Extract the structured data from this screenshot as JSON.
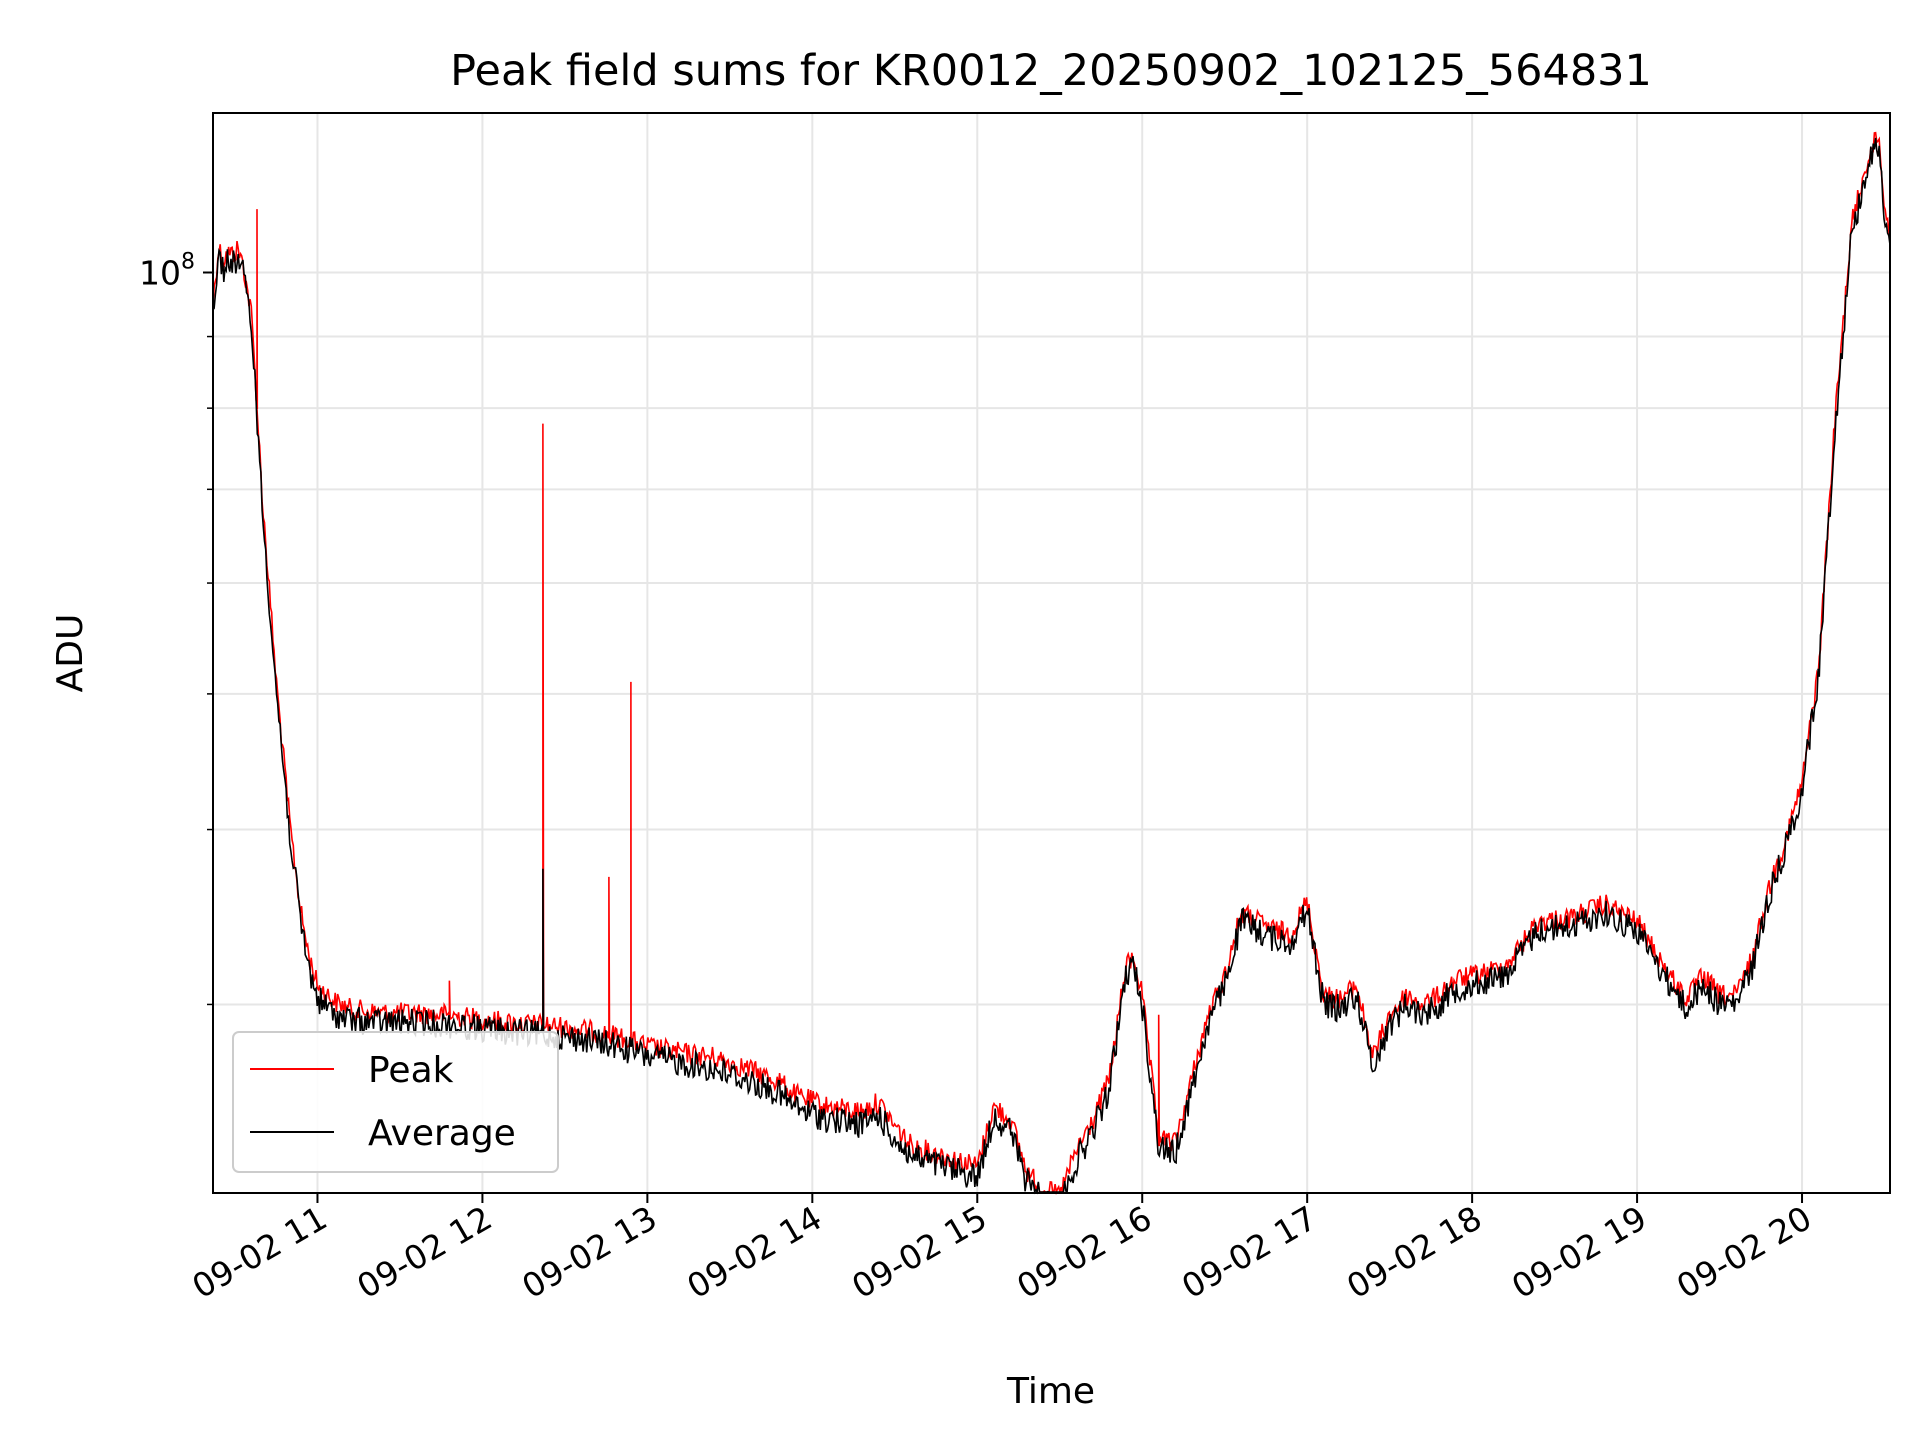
{
  "chart_data": {
    "type": "line",
    "title": "Peak field sums for KR0012_20250902_102125_564831",
    "xlabel": "Time",
    "ylabel": "ADU",
    "yscale": "log",
    "xlim": [
      "09-02 10:22",
      "09-02 20:32"
    ],
    "ylim": [
      22000000,
      130000000
    ],
    "grid": true,
    "legend": "lower-left",
    "x_ticks": [
      "09-02 11",
      "09-02 12",
      "09-02 13",
      "09-02 14",
      "09-02 15",
      "09-02 16",
      "09-02 17",
      "09-02 18",
      "09-02 19",
      "09-02 20"
    ],
    "y_major_ticks": [
      {
        "value": 100000000,
        "label": "10",
        "exponent": "8"
      }
    ],
    "y_minor_ticks": [
      30000000,
      40000000,
      50000000,
      60000000,
      70000000,
      80000000,
      90000000
    ],
    "series": [
      {
        "name": "Peak",
        "color": "#ff0000",
        "x": [
          "10:22",
          "10:24",
          "10:26",
          "10:27",
          "10:30",
          "10:31",
          "10:33",
          "10:36",
          "10:38",
          "10:40",
          "10:45",
          "10:50",
          "10:54",
          "10:57",
          "11:00",
          "11:06",
          "11:12",
          "11:24",
          "11:36",
          "11:48",
          "12:00",
          "12:12",
          "12:24",
          "12:36",
          "12:48",
          "13:00",
          "13:12",
          "13:24",
          "13:36",
          "13:48",
          "13:54",
          "14:06",
          "14:18",
          "14:24",
          "14:30",
          "14:36",
          "14:48",
          "15:00",
          "15:06",
          "15:12",
          "15:18",
          "15:24",
          "15:30",
          "15:36",
          "15:42",
          "15:48",
          "15:54",
          "15:57",
          "16:00",
          "16:06",
          "16:12",
          "16:18",
          "16:24",
          "16:30",
          "16:36",
          "16:42",
          "16:48",
          "16:54",
          "17:00",
          "17:06",
          "17:12",
          "17:18",
          "17:24",
          "17:30",
          "17:36",
          "17:42",
          "17:48",
          "17:54",
          "18:00",
          "18:12",
          "18:24",
          "18:36",
          "18:48",
          "19:00",
          "19:12",
          "19:18",
          "19:24",
          "19:30",
          "19:36",
          "19:42",
          "19:48",
          "19:54",
          "20:00",
          "20:06",
          "20:12",
          "20:18",
          "20:24",
          "20:28",
          "20:30",
          "20:31",
          "20:32"
        ],
        "y": [
          97000000,
          106000000,
          104000000,
          105000000,
          105000000,
          106000000,
          103000000,
          95000000,
          82000000,
          70000000,
          52000000,
          41000000,
          35500000,
          33000000,
          31500000,
          30700000,
          30300000,
          30100000,
          30100000,
          30000000,
          29800000,
          29600000,
          29500000,
          29300000,
          29000000,
          28500000,
          28200000,
          28000000,
          27500000,
          26900000,
          26300000,
          25800000,
          25600000,
          26000000,
          25000000,
          24200000,
          23800000,
          23400000,
          25800000,
          25300000,
          23200000,
          22500000,
          22300000,
          24000000,
          25200000,
          27000000,
          32500000,
          33000000,
          31000000,
          24500000,
          24300000,
          27000000,
          30000000,
          32000000,
          35500000,
          35000000,
          34500000,
          34300000,
          36200000,
          31000000,
          30800000,
          31500000,
          28000000,
          30000000,
          31000000,
          30500000,
          31000000,
          31800000,
          32000000,
          32500000,
          35000000,
          35200000,
          36000000,
          35000000,
          32000000,
          30800000,
          32000000,
          31000000,
          31000000,
          33000000,
          37000000,
          40000000,
          44000000,
          53000000,
          80000000,
          110000000,
          123000000,
          128000000,
          112000000,
          113000000,
          108000000
        ],
        "spikes": [
          {
            "x": "10:38",
            "y": 111000000
          },
          {
            "x": "11:48",
            "y": 31200000
          },
          {
            "x": "12:22",
            "y": 78000000
          },
          {
            "x": "12:46",
            "y": 37000000
          },
          {
            "x": "12:54",
            "y": 51000000
          },
          {
            "x": "16:06",
            "y": 29500000
          }
        ]
      },
      {
        "name": "Average",
        "color": "#000000",
        "x": [
          "10:22",
          "10:24",
          "10:26",
          "10:27",
          "10:30",
          "10:31",
          "10:33",
          "10:36",
          "10:38",
          "10:40",
          "10:45",
          "10:50",
          "10:54",
          "10:57",
          "11:00",
          "11:06",
          "11:12",
          "11:24",
          "11:36",
          "11:48",
          "12:00",
          "12:12",
          "12:24",
          "12:36",
          "12:48",
          "13:00",
          "13:12",
          "13:24",
          "13:36",
          "13:48",
          "13:54",
          "14:06",
          "14:18",
          "14:24",
          "14:30",
          "14:36",
          "14:48",
          "15:00",
          "15:06",
          "15:12",
          "15:18",
          "15:24",
          "15:30",
          "15:36",
          "15:42",
          "15:48",
          "15:54",
          "15:57",
          "16:00",
          "16:06",
          "16:12",
          "16:18",
          "16:24",
          "16:30",
          "16:36",
          "16:42",
          "16:48",
          "16:54",
          "17:00",
          "17:06",
          "17:12",
          "17:18",
          "17:24",
          "17:30",
          "17:36",
          "17:42",
          "17:48",
          "17:54",
          "18:00",
          "18:12",
          "18:24",
          "18:36",
          "18:48",
          "19:00",
          "19:12",
          "19:18",
          "19:24",
          "19:30",
          "19:36",
          "19:42",
          "19:48",
          "19:54",
          "20:00",
          "20:06",
          "20:12",
          "20:18",
          "20:24",
          "20:28",
          "20:30",
          "20:31",
          "20:32"
        ],
        "y": [
          96000000,
          105000000,
          103000000,
          104000000,
          104000000,
          105000000,
          102000000,
          94000000,
          81000000,
          69000000,
          51500000,
          40500000,
          35000000,
          32500000,
          31000000,
          30200000,
          29900000,
          29800000,
          29800000,
          29700000,
          29500000,
          29300000,
          29200000,
          29000000,
          28700000,
          28200000,
          27900000,
          27600000,
          27100000,
          26500000,
          25900000,
          25400000,
          25200000,
          25600000,
          24600000,
          23900000,
          23500000,
          23100000,
          25500000,
          25000000,
          22900000,
          22200000,
          22000000,
          23700000,
          24900000,
          26700000,
          32200000,
          32700000,
          30700000,
          24300000,
          24000000,
          26700000,
          29700000,
          31700000,
          35200000,
          34700000,
          34200000,
          34000000,
          35900000,
          30700000,
          30500000,
          31200000,
          27700000,
          29700000,
          30700000,
          30200000,
          30700000,
          31500000,
          31700000,
          32200000,
          34700000,
          34900000,
          35700000,
          34700000,
          31700000,
          30500000,
          31700000,
          30700000,
          30700000,
          32700000,
          36700000,
          39700000,
          43700000,
          52700000,
          79000000,
          109000000,
          122000000,
          127000000,
          111000000,
          112000000,
          107000000
        ],
        "spikes": [
          {
            "x": "12:22",
            "y": 37500000
          },
          {
            "x": "15:30",
            "y": 21500000
          }
        ]
      }
    ]
  }
}
